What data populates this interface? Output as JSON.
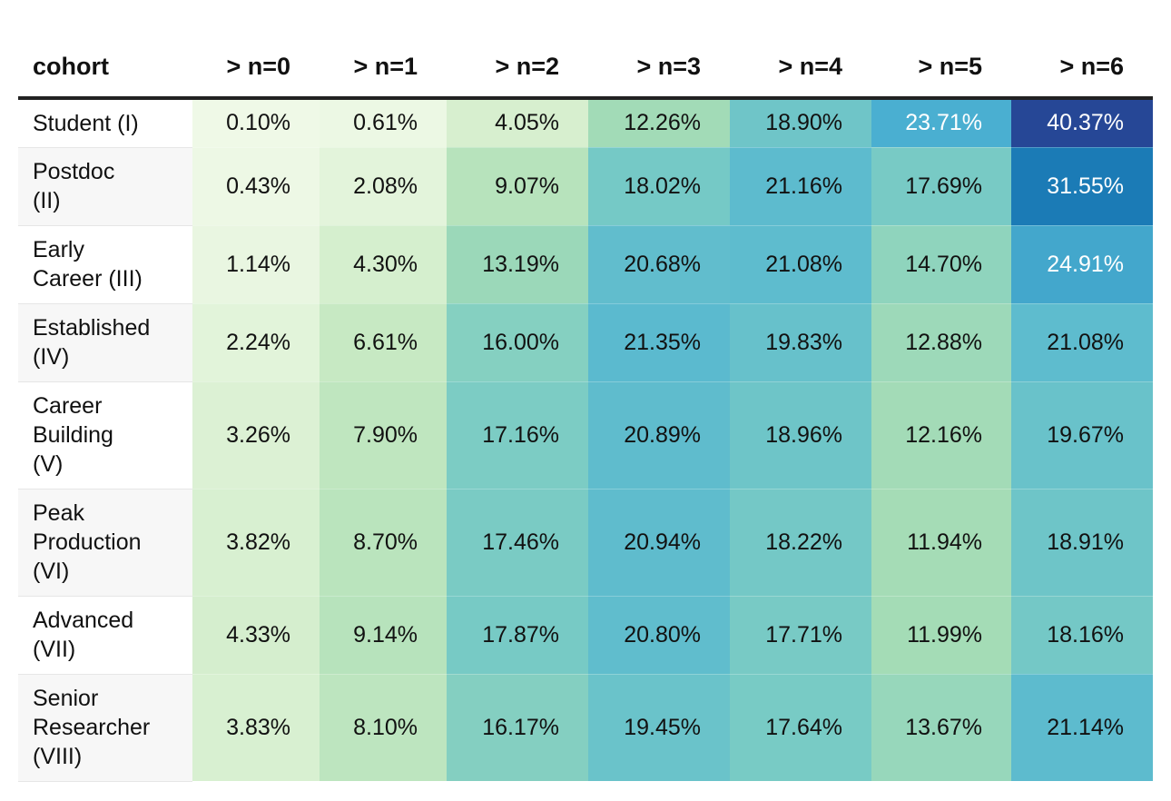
{
  "chart_data": {
    "type": "table",
    "columns": [
      "cohort",
      "> n=0",
      "> n=1",
      "> n=2",
      "> n=3",
      "> n=4",
      "> n=5",
      "> n=6"
    ],
    "rows": [
      {
        "cohort": [
          "Student (I)"
        ],
        "values": [
          "0.10%",
          "0.61%",
          "4.05%",
          "12.26%",
          "18.90%",
          "23.71%",
          "40.37%"
        ],
        "numbers": [
          0.1,
          0.61,
          4.05,
          12.26,
          18.9,
          23.71,
          40.37
        ]
      },
      {
        "cohort": [
          "Postdoc",
          "(II)"
        ],
        "values": [
          "0.43%",
          "2.08%",
          "9.07%",
          "18.02%",
          "21.16%",
          "17.69%",
          "31.55%"
        ],
        "numbers": [
          0.43,
          2.08,
          9.07,
          18.02,
          21.16,
          17.69,
          31.55
        ]
      },
      {
        "cohort": [
          "Early",
          "Career (III)"
        ],
        "values": [
          "1.14%",
          "4.30%",
          "13.19%",
          "20.68%",
          "21.08%",
          "14.70%",
          "24.91%"
        ],
        "numbers": [
          1.14,
          4.3,
          13.19,
          20.68,
          21.08,
          14.7,
          24.91
        ]
      },
      {
        "cohort": [
          "Established",
          "(IV)"
        ],
        "values": [
          "2.24%",
          "6.61%",
          "16.00%",
          "21.35%",
          "19.83%",
          "12.88%",
          "21.08%"
        ],
        "numbers": [
          2.24,
          6.61,
          16.0,
          21.35,
          19.83,
          12.88,
          21.08
        ]
      },
      {
        "cohort": [
          "Career",
          "Building",
          "(V)"
        ],
        "values": [
          "3.26%",
          "7.90%",
          "17.16%",
          "20.89%",
          "18.96%",
          "12.16%",
          "19.67%"
        ],
        "numbers": [
          3.26,
          7.9,
          17.16,
          20.89,
          18.96,
          12.16,
          19.67
        ]
      },
      {
        "cohort": [
          "Peak",
          "Production",
          "(VI)"
        ],
        "values": [
          "3.82%",
          "8.70%",
          "17.46%",
          "20.94%",
          "18.22%",
          "11.94%",
          "18.91%"
        ],
        "numbers": [
          3.82,
          8.7,
          17.46,
          20.94,
          18.22,
          11.94,
          18.91
        ]
      },
      {
        "cohort": [
          "Advanced",
          "(VII)"
        ],
        "values": [
          "4.33%",
          "9.14%",
          "17.87%",
          "20.80%",
          "17.71%",
          "11.99%",
          "18.16%"
        ],
        "numbers": [
          4.33,
          9.14,
          17.87,
          20.8,
          17.71,
          11.99,
          18.16
        ]
      },
      {
        "cohort": [
          "Senior",
          "Researcher",
          "(VIII)"
        ],
        "values": [
          "3.83%",
          "8.10%",
          "16.17%",
          "19.45%",
          "17.64%",
          "13.67%",
          "21.14%"
        ],
        "numbers": [
          3.83,
          8.1,
          16.17,
          19.45,
          17.64,
          13.67,
          21.14
        ]
      }
    ],
    "color_scale": {
      "name": "GnBu",
      "domain": [
        0,
        40.37
      ],
      "stops": [
        "#f0f9e8",
        "#ccebc5",
        "#a8ddb5",
        "#7bccc4",
        "#4eb3d3",
        "#2b8cbe",
        "#0868ac",
        "#264796"
      ]
    },
    "dark_text_color": "#111111",
    "light_text_color": "#ffffff"
  }
}
